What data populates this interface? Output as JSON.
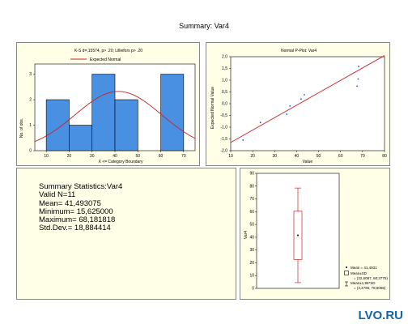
{
  "window": {
    "title": "Summary: Var4",
    "watermark": "LVO.RU"
  },
  "histogram": {
    "title": "K-S d=,15574, p> .20; Lilliefors p> .20",
    "legend": "Expected Normal",
    "ylabel": "No. of obs.",
    "xlabel": "X <= Category Boundary",
    "yticks": [
      "0",
      "1",
      "2",
      "3"
    ],
    "xticks": [
      "10",
      "20",
      "30",
      "40",
      "50",
      "60",
      "70"
    ]
  },
  "pplot": {
    "title": "Normal P-Plot: Var4",
    "ylabel": "Expected Normal Value",
    "xlabel": "Value",
    "yticks": [
      "2,0",
      "1,5",
      "1,0",
      "0,5",
      "0,0",
      "-0,5",
      "-1,0",
      "-1,5",
      "-2,0"
    ],
    "xticks": [
      "10",
      "20",
      "30",
      "40",
      "50",
      "60",
      "70",
      "80"
    ]
  },
  "stats": {
    "header": "Summary Statistics:Var4",
    "valid_n": "Valid N=11",
    "mean": "Mean= 41,493075",
    "minimum": "Minimum= 15,625000",
    "maximum": "Maximum= 68,181818",
    "stddev": "Std.Dev.= 18,884414"
  },
  "boxplot": {
    "ylabel": "Var4",
    "yticks": [
      "90",
      "80",
      "70",
      "60",
      "50",
      "40",
      "30",
      "20",
      "10",
      "0"
    ],
    "legend_mean": "Mean = 41,4931",
    "legend_box_label": "Mean±SD",
    "legend_box_range": "= (22,6087, 60,3775)",
    "legend_whisker_label": "Mean±1,96*SD",
    "legend_whisker_range": "= (4,4796, 78,5065)"
  },
  "colors": {
    "panel_bg": "#ffffe8",
    "bar_fill": "#4a90e2",
    "curve": "#cc2222",
    "points": "#2255cc"
  },
  "chart_data": [
    {
      "type": "bar",
      "title": "K-S d=,15574, p> .20; Lilliefors p> .20",
      "xlabel": "X <= Category Boundary",
      "ylabel": "No. of obs.",
      "categories": [
        "10-20",
        "20-30",
        "30-40",
        "40-50",
        "50-60",
        "60-70"
      ],
      "values": [
        2,
        1,
        3,
        2,
        0,
        3
      ],
      "xlim": [
        5,
        75
      ],
      "ylim": [
        0,
        3.4
      ],
      "series": [
        {
          "name": "Expected Normal",
          "values": [
            1.07,
            1.81,
            2.28,
            2.13,
            1.49,
            0.77
          ]
        }
      ]
    },
    {
      "type": "scatter",
      "title": "Normal P-Plot: Var4",
      "xlabel": "Value",
      "ylabel": "Expected Normal Value",
      "xlim": [
        10,
        80
      ],
      "ylim": [
        -2.0,
        2.0
      ],
      "x": [
        15.6,
        23.5,
        35.5,
        37.0,
        42.0,
        43.5,
        67.5,
        68.0,
        68.2
      ],
      "y": [
        -1.55,
        -0.8,
        -0.45,
        -0.1,
        0.2,
        0.38,
        0.75,
        1.05,
        1.58
      ],
      "fit_line": {
        "x": [
          10,
          80
        ],
        "y": [
          -1.65,
          2.05
        ]
      }
    },
    {
      "type": "box",
      "ylabel": "Var4",
      "ylim": [
        0,
        90
      ],
      "mean": 41.4931,
      "box": [
        22.6087,
        60.3775
      ],
      "whiskers": [
        4.4796,
        78.5065
      ]
    }
  ]
}
